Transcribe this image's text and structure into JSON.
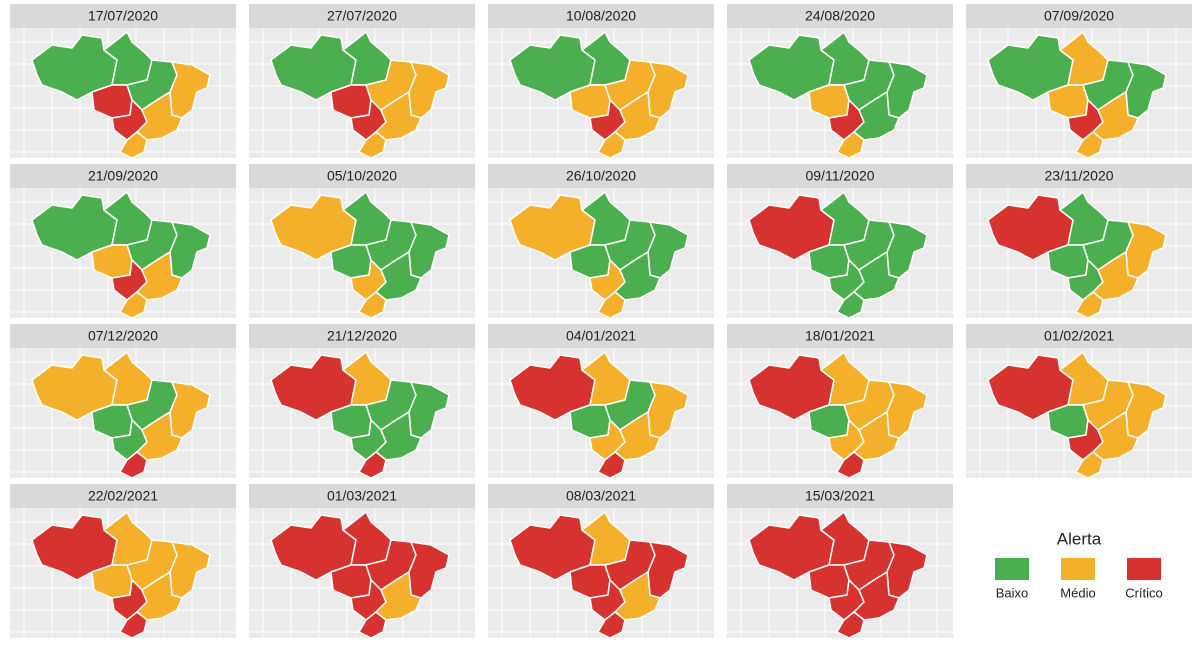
{
  "panels": [
    {
      "title": "17/07/2020",
      "levels": [
        0,
        0,
        0,
        1,
        2,
        2,
        1,
        1
      ]
    },
    {
      "title": "27/07/2020",
      "levels": [
        0,
        0,
        1,
        1,
        2,
        2,
        1,
        1
      ]
    },
    {
      "title": "10/08/2020",
      "levels": [
        0,
        0,
        1,
        1,
        1,
        2,
        1,
        1
      ]
    },
    {
      "title": "24/08/2020",
      "levels": [
        0,
        0,
        0,
        0,
        1,
        2,
        0,
        1
      ]
    },
    {
      "title": "07/09/2020",
      "levels": [
        0,
        1,
        0,
        0,
        1,
        2,
        1,
        1
      ]
    },
    {
      "title": "21/09/2020",
      "levels": [
        0,
        0,
        0,
        0,
        1,
        2,
        1,
        1
      ]
    },
    {
      "title": "05/10/2020",
      "levels": [
        1,
        0,
        0,
        0,
        0,
        1,
        0,
        1
      ]
    },
    {
      "title": "26/10/2020",
      "levels": [
        1,
        0,
        0,
        0,
        0,
        1,
        0,
        1
      ]
    },
    {
      "title": "09/11/2020",
      "levels": [
        2,
        0,
        0,
        0,
        0,
        0,
        0,
        0
      ]
    },
    {
      "title": "23/11/2020",
      "levels": [
        2,
        0,
        0,
        1,
        0,
        0,
        1,
        1
      ]
    },
    {
      "title": "07/12/2020",
      "levels": [
        1,
        1,
        0,
        1,
        0,
        0,
        1,
        2
      ]
    },
    {
      "title": "21/12/2020",
      "levels": [
        2,
        1,
        0,
        0,
        0,
        0,
        0,
        2
      ]
    },
    {
      "title": "04/01/2021",
      "levels": [
        2,
        1,
        0,
        1,
        0,
        1,
        1,
        2
      ]
    },
    {
      "title": "18/01/2021",
      "levels": [
        2,
        1,
        1,
        1,
        0,
        1,
        1,
        2
      ]
    },
    {
      "title": "01/02/2021",
      "levels": [
        2,
        1,
        1,
        1,
        0,
        2,
        1,
        1
      ]
    },
    {
      "title": "22/02/2021",
      "levels": [
        2,
        1,
        1,
        1,
        1,
        2,
        1,
        2
      ]
    },
    {
      "title": "01/03/2021",
      "levels": [
        2,
        2,
        2,
        2,
        2,
        2,
        1,
        2
      ]
    },
    {
      "title": "08/03/2021",
      "levels": [
        2,
        1,
        2,
        2,
        2,
        2,
        1,
        2
      ]
    },
    {
      "title": "15/03/2021",
      "levels": [
        2,
        2,
        2,
        2,
        2,
        2,
        2,
        2
      ]
    }
  ],
  "legend": {
    "title": "Alerta",
    "items": [
      {
        "label": "Baixo",
        "color": "#4caf4f"
      },
      {
        "label": "Médio",
        "color": "#f4b02a"
      },
      {
        "label": "Crítico",
        "color": "#d6322f"
      }
    ]
  }
}
